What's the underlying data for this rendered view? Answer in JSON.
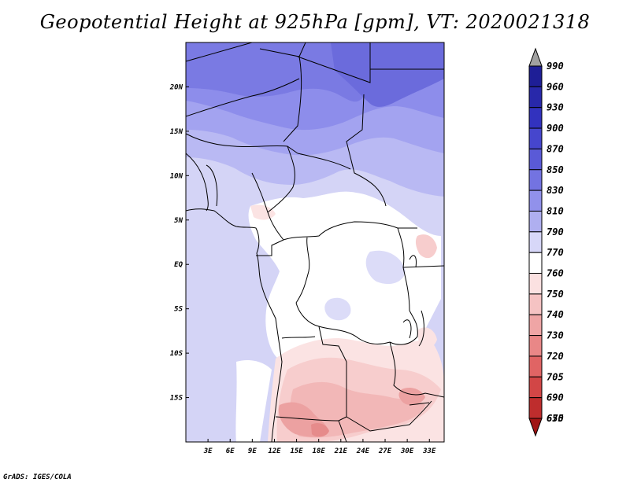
{
  "title": "Geopotential Height at 925hPa [gpm], VT: 2020021318",
  "credit": "GrADS: IGES/COLA",
  "map": {
    "variable": "Geopotential Height",
    "level": "925hPa",
    "units": "gpm",
    "valid_time": "2020021318",
    "lon_range": [
      0,
      35
    ],
    "lat_range": [
      -20,
      25
    ],
    "lat_ticks": [
      {
        "value": 20,
        "label": "20N"
      },
      {
        "value": 15,
        "label": "15N"
      },
      {
        "value": 10,
        "label": "10N"
      },
      {
        "value": 5,
        "label": "5N"
      },
      {
        "value": 0,
        "label": "EQ"
      },
      {
        "value": -5,
        "label": "5S"
      },
      {
        "value": -10,
        "label": "10S"
      },
      {
        "value": -15,
        "label": "15S"
      }
    ],
    "lon_ticks": [
      {
        "value": 3,
        "label": "3E"
      },
      {
        "value": 6,
        "label": "6E"
      },
      {
        "value": 9,
        "label": "9E"
      },
      {
        "value": 12,
        "label": "12E"
      },
      {
        "value": 15,
        "label": "15E"
      },
      {
        "value": 18,
        "label": "18E"
      },
      {
        "value": 21,
        "label": "21E"
      },
      {
        "value": 24,
        "label": "24E"
      },
      {
        "value": 27,
        "label": "27E"
      },
      {
        "value": 30,
        "label": "30E"
      },
      {
        "value": 33,
        "label": "33E"
      }
    ]
  },
  "colorbar": {
    "levels": [
      {
        "value": "990",
        "color": "#a0a0a0"
      },
      {
        "value": "960",
        "color": "#1e1e96"
      },
      {
        "value": "930",
        "color": "#2828aa"
      },
      {
        "value": "900",
        "color": "#3232be"
      },
      {
        "value": "870",
        "color": "#4646cd"
      },
      {
        "value": "850",
        "color": "#5a5ad7"
      },
      {
        "value": "830",
        "color": "#7373e1"
      },
      {
        "value": "810",
        "color": "#9191eb"
      },
      {
        "value": "790",
        "color": "#afaff0"
      },
      {
        "value": "770",
        "color": "#d7d7f8"
      },
      {
        "value": "760",
        "color": "#ffffff"
      },
      {
        "value": "750",
        "color": "#fbe1e1"
      },
      {
        "value": "740",
        "color": "#f5c3c3"
      },
      {
        "value": "730",
        "color": "#efa5a5"
      },
      {
        "value": "720",
        "color": "#e98787"
      },
      {
        "value": "705",
        "color": "#e06464"
      },
      {
        "value": "690",
        "color": "#d24646"
      },
      {
        "value": "675",
        "color": "#be2d2d"
      },
      {
        "value": "650",
        "color": "#a01414"
      }
    ]
  }
}
